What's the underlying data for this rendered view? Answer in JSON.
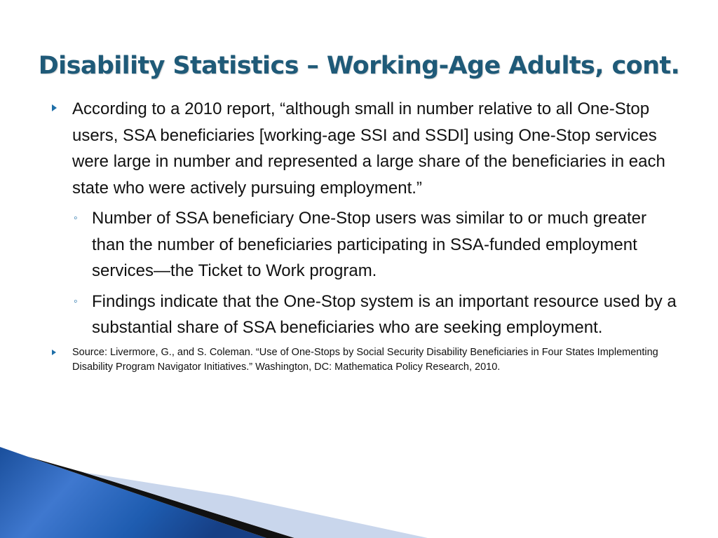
{
  "slide": {
    "title": "Disability Statistics – Working-Age Adults, cont.",
    "bullets": [
      {
        "text": "According to a 2010 report, “although small in number relative to all One-Stop users, SSA beneficiaries [working-age SSI and SSDI] using One-Stop services were large in number and represented a large share of the beneficiaries in each state who were actively pursuing employment.”",
        "sub": [
          "Number of SSA beneficiary One-Stop users was similar to or much greater than the number of beneficiaries participating in SSA-funded employment services—the Ticket to Work program.",
          "Findings indicate that the One-Stop system is an important resource used by a substantial share of SSA beneficiaries who are seeking employment."
        ]
      }
    ],
    "source": "Source:  Livermore, G., and S. Coleman. “Use of One-Stops by Social Security Disability Beneficiaries in Four States Implementing Disability Program Navigator Initiatives.” Washington, DC: Mathematica Policy Research, 2010."
  },
  "theme": {
    "title_color": "#1f5a78",
    "bullet_color": "#1f6fa8",
    "decor_blue": "#1f5fb0",
    "decor_dark": "#111111",
    "decor_light": "#c9d6ec"
  }
}
